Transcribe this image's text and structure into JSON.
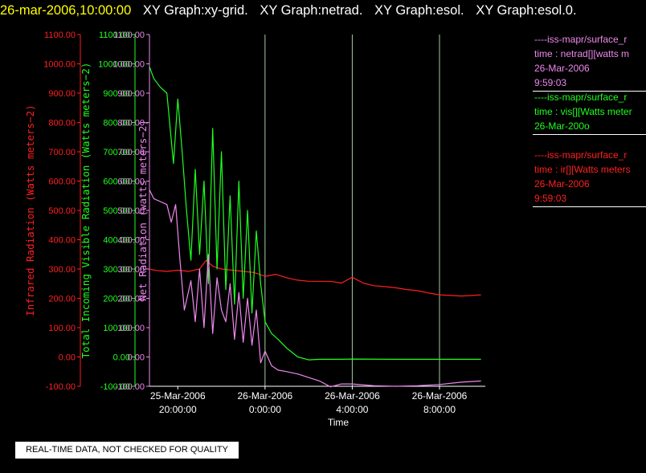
{
  "header": {
    "timestamp": "26-mar-2006,10:00:00",
    "titles": [
      "XY Graph:xy-grid.",
      "XY Graph:netrad.",
      "XY Graph:esol.",
      "XY Graph:esol.0."
    ]
  },
  "colors": {
    "ir": "#ff2020",
    "vis": "#20ff20",
    "net": "#ee88ee",
    "grid": "#c8ffc8",
    "axis": "#ffffff"
  },
  "legend": [
    {
      "lines": [
        "----iss-mapr/surface_r",
        "time : netrad[][watts m",
        "26-Mar-2006",
        "9:59:03"
      ],
      "color": "#ee88ee"
    },
    {
      "lines": [
        "----iss-mapr/surface_r",
        "time : vis[][Watts meter",
        "26-Mar-200o"
      ],
      "color": "#20ff20"
    },
    {
      "lines": [
        "----iss-mapr/surface_r",
        "time : ir[][Watts meters",
        "26-Mar-2006",
        "9:59:03"
      ],
      "color": "#ff2020"
    }
  ],
  "note": "REAL-TIME DATA, NOT CHECKED FOR QUALITY",
  "chart_data": {
    "type": "line",
    "xlabel": "Time",
    "x_ticks": [
      {
        "date": "25-Mar-2006",
        "time": "20:00:00",
        "hours": 20
      },
      {
        "date": "26-Mar-2006",
        "time": "0:00:00",
        "hours": 24
      },
      {
        "date": "26-Mar-2006",
        "time": "4:00:00",
        "hours": 28
      },
      {
        "date": "26-Mar-2006",
        "time": "8:00:00",
        "hours": 32
      }
    ],
    "x_unit": "hours since 25-Mar-2006 00:00",
    "xlim": [
      18.7,
      34.1
    ],
    "ylim": [
      -100,
      1100
    ],
    "y_ticks": [
      "1100.00",
      "1000.00",
      "900.00",
      "800.00",
      "700.00",
      "600.00",
      "500.00",
      "400.00",
      "300.00",
      "200.00",
      "100.00",
      "0.00",
      "-100.00"
    ],
    "y_tick_values": [
      1100,
      1000,
      900,
      800,
      700,
      600,
      500,
      400,
      300,
      200,
      100,
      0,
      -100
    ],
    "axes": [
      {
        "label": "Infrared Radiation (Watts meters−2)",
        "color": "#ff2020"
      },
      {
        "label": "Total Incoming Visible Radiation (Watts meters−2)",
        "color": "#20ff20"
      },
      {
        "label": "Net Radiation (watts meters−2)",
        "color": "#ee88ee"
      }
    ],
    "vertical_grid_hours": [
      24,
      28,
      32
    ],
    "series": [
      {
        "name": "ir",
        "color": "#ff2020",
        "x": [
          18.7,
          19.0,
          19.5,
          20.0,
          20.5,
          21.0,
          21.3,
          21.6,
          22.0,
          22.5,
          23.0,
          23.5,
          24.0,
          24.5,
          25.0,
          25.5,
          26.0,
          26.5,
          27.0,
          27.5,
          28.0,
          28.5,
          29.0,
          29.5,
          30.0,
          30.5,
          31.0,
          31.5,
          32.0,
          32.5,
          33.0,
          33.5,
          33.9
        ],
        "y": [
          300,
          295,
          292,
          296,
          292,
          300,
          330,
          310,
          300,
          296,
          292,
          288,
          275,
          282,
          270,
          262,
          258,
          258,
          258,
          252,
          272,
          252,
          243,
          240,
          236,
          230,
          226,
          218,
          212,
          210,
          208,
          210,
          212
        ]
      },
      {
        "name": "vis",
        "color": "#20ff20",
        "x": [
          18.7,
          18.9,
          19.2,
          19.5,
          19.8,
          20.0,
          20.2,
          20.4,
          20.6,
          20.8,
          21.0,
          21.2,
          21.4,
          21.6,
          21.8,
          22.0,
          22.2,
          22.4,
          22.6,
          22.8,
          23.0,
          23.2,
          23.4,
          23.6,
          23.8,
          24.0,
          24.3,
          24.6,
          25.0,
          25.5,
          26.0,
          26.5,
          27.0,
          27.5,
          28.0,
          30.0,
          32.0,
          33.9
        ],
        "y": [
          990,
          950,
          920,
          900,
          660,
          880,
          700,
          500,
          330,
          640,
          350,
          600,
          250,
          780,
          300,
          700,
          230,
          550,
          180,
          600,
          200,
          500,
          150,
          430,
          250,
          120,
          80,
          60,
          30,
          0,
          -10,
          -8,
          -8,
          -8,
          -7,
          -8,
          -8,
          -8
        ]
      },
      {
        "name": "net",
        "color": "#ee88ee",
        "x": [
          18.7,
          18.9,
          19.2,
          19.5,
          19.7,
          19.9,
          20.1,
          20.3,
          20.6,
          20.8,
          21.0,
          21.2,
          21.4,
          21.6,
          21.8,
          22.0,
          22.2,
          22.4,
          22.6,
          22.8,
          23.0,
          23.2,
          23.4,
          23.6,
          23.8,
          24.0,
          24.3,
          24.6,
          25.0,
          25.5,
          26.0,
          26.5,
          27.0,
          27.5,
          28.0,
          29.0,
          30.0,
          31.0,
          32.0,
          33.0,
          33.9
        ],
        "y": [
          570,
          540,
          530,
          520,
          460,
          520,
          330,
          160,
          260,
          120,
          300,
          100,
          350,
          80,
          270,
          160,
          120,
          250,
          60,
          220,
          50,
          200,
          40,
          160,
          -20,
          20,
          -30,
          -45,
          -50,
          -58,
          -70,
          -82,
          -102,
          -92,
          -92,
          -98,
          -100,
          -98,
          -94,
          -86,
          -82
        ]
      }
    ]
  }
}
